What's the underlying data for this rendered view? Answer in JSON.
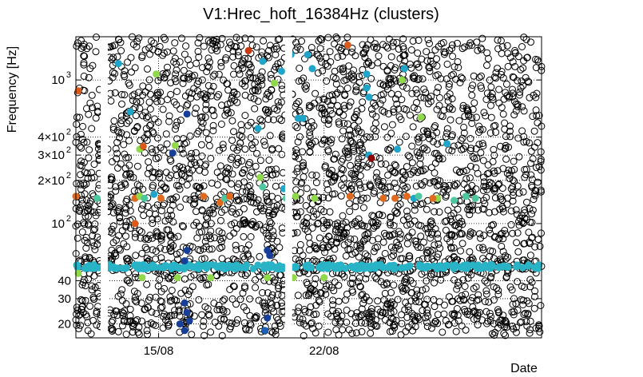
{
  "chart_data": {
    "type": "scatter",
    "title": "V1:Hrec_hoft_16384Hz (clusters)",
    "xlabel": "Date",
    "ylabel": "Frequency [Hz]",
    "yscale": "log",
    "ylim": [
      16,
      2000
    ],
    "x_ticks": [
      "15/08",
      "22/08"
    ],
    "x_range_days": [
      11.5,
      31.2
    ],
    "x_tick_days": [
      15,
      22
    ],
    "y_ticks": [
      {
        "value": 20,
        "label": "20"
      },
      {
        "value": 30,
        "label": "30"
      },
      {
        "value": 40,
        "label": "40"
      },
      {
        "value": 100,
        "label": "10",
        "exp": "2"
      },
      {
        "value": 200,
        "label": "2×10",
        "exp": "2"
      },
      {
        "value": 300,
        "label": "3×10",
        "exp": "2"
      },
      {
        "value": 400,
        "label": "4×10",
        "exp": "2"
      },
      {
        "value": 1000,
        "label": "10",
        "exp": "3"
      }
    ],
    "grid": "dotted",
    "data_gaps_days": [
      [
        12.55,
        12.85
      ],
      [
        20.35,
        20.65
      ]
    ],
    "background_clusters": {
      "description_color": "black open circles",
      "frequency_bands": [
        19,
        22,
        26,
        33,
        44,
        50,
        60,
        75,
        90,
        110,
        135,
        165,
        200,
        250,
        320,
        420,
        560,
        700,
        900,
        1150,
        1500,
        1900
      ],
      "color": "#000000"
    },
    "main_line_hz": 50,
    "main_line_color": "#29b3c6",
    "colored_points": [
      {
        "day": 11.6,
        "hz": 840,
        "color": "#d95a1a"
      },
      {
        "day": 11.5,
        "hz": 155,
        "color": "#e06a1e"
      },
      {
        "day": 12.4,
        "hz": 150,
        "color": "#4cc7a0"
      },
      {
        "day": 13.3,
        "hz": 1300,
        "color": "#1fa5c9"
      },
      {
        "day": 13.8,
        "hz": 600,
        "color": "#1fa5c9"
      },
      {
        "day": 14.2,
        "hz": 330,
        "color": "#8fd94a"
      },
      {
        "day": 14.35,
        "hz": 345,
        "color": "#d95a1a"
      },
      {
        "day": 14.0,
        "hz": 150,
        "color": "#e06a1e"
      },
      {
        "day": 14.2,
        "hz": 155,
        "color": "#8fd94a"
      },
      {
        "day": 14.4,
        "hz": 150,
        "color": "#4cc7a0"
      },
      {
        "day": 14.8,
        "hz": 160,
        "color": "#1fa5c9"
      },
      {
        "day": 14.9,
        "hz": 1100,
        "color": "#8fd94a"
      },
      {
        "day": 15.7,
        "hz": 350,
        "color": "#8fd94a"
      },
      {
        "day": 15.6,
        "hz": 310,
        "color": "#173f99"
      },
      {
        "day": 16.2,
        "hz": 580,
        "color": "#173f99"
      },
      {
        "day": 14.0,
        "hz": 100,
        "color": "#d95a1a"
      },
      {
        "day": 15.1,
        "hz": 150,
        "color": "#e06a1e"
      },
      {
        "day": 16.9,
        "hz": 155,
        "color": "#e06a1e"
      },
      {
        "day": 17.6,
        "hz": 140,
        "color": "#e06a1e"
      },
      {
        "day": 17.8,
        "hz": 150,
        "color": "#4cc7a0"
      },
      {
        "day": 18.0,
        "hz": 155,
        "color": "#e06a1e"
      },
      {
        "day": 18.8,
        "hz": 1600,
        "color": "#cc3a12"
      },
      {
        "day": 19.4,
        "hz": 1350,
        "color": "#1fa5c9"
      },
      {
        "day": 19.2,
        "hz": 460,
        "color": "#1fa5c9"
      },
      {
        "day": 19.3,
        "hz": 210,
        "color": "#8fd94a"
      },
      {
        "day": 19.4,
        "hz": 180,
        "color": "#4cc7a0"
      },
      {
        "day": 19.9,
        "hz": 950,
        "color": "#8fd94a"
      },
      {
        "day": 20.2,
        "hz": 1150,
        "color": "#1fa5c9"
      },
      {
        "day": 20.6,
        "hz": 1500,
        "color": "#1fa5c9"
      },
      {
        "day": 20.5,
        "hz": 295,
        "color": "#d95a1a"
      },
      {
        "day": 20.9,
        "hz": 540,
        "color": "#1fa5c9"
      },
      {
        "day": 21.1,
        "hz": 540,
        "color": "#1fa5c9"
      },
      {
        "day": 20.3,
        "hz": 175,
        "color": "#1fa5c9"
      },
      {
        "day": 20.4,
        "hz": 150,
        "color": "#4cc7a0"
      },
      {
        "day": 20.8,
        "hz": 155,
        "color": "#8fd94a"
      },
      {
        "day": 21.3,
        "hz": 1500,
        "color": "#1fa5c9"
      },
      {
        "day": 21.6,
        "hz": 150,
        "color": "#8fd94a"
      },
      {
        "day": 23.0,
        "hz": 1750,
        "color": "#d95a1a"
      },
      {
        "day": 23.8,
        "hz": 1100,
        "color": "#1fa5c9"
      },
      {
        "day": 23.8,
        "hz": 880,
        "color": "#1fa5c9"
      },
      {
        "day": 23.9,
        "hz": 760,
        "color": "#1fa5c9"
      },
      {
        "day": 23.9,
        "hz": 300,
        "color": "#1fa5c9"
      },
      {
        "day": 24.0,
        "hz": 285,
        "color": "#8b0000"
      },
      {
        "day": 23.1,
        "hz": 155,
        "color": "#e06a1e"
      },
      {
        "day": 24.5,
        "hz": 150,
        "color": "#e06a1e"
      },
      {
        "day": 25.0,
        "hz": 150,
        "color": "#e06a1e"
      },
      {
        "day": 25.4,
        "hz": 1200,
        "color": "#1fa5c9"
      },
      {
        "day": 25.3,
        "hz": 1000,
        "color": "#8fd94a"
      },
      {
        "day": 25.1,
        "hz": 330,
        "color": "#1fa5c9"
      },
      {
        "day": 25.5,
        "hz": 155,
        "color": "#e06a1e"
      },
      {
        "day": 25.8,
        "hz": 150,
        "color": "#1fa5c9"
      },
      {
        "day": 26.0,
        "hz": 155,
        "color": "#4cc7a0"
      },
      {
        "day": 26.1,
        "hz": 550,
        "color": "#8fd94a"
      },
      {
        "day": 26.8,
        "hz": 150,
        "color": "#8fd94a"
      },
      {
        "day": 27.2,
        "hz": 360,
        "color": "#1fa5c9"
      },
      {
        "day": 27.5,
        "hz": 145,
        "color": "#4cc7a0"
      },
      {
        "day": 26.6,
        "hz": 150,
        "color": "#e06a1e"
      },
      {
        "day": 28.0,
        "hz": 155,
        "color": "#4cc7a0"
      },
      {
        "day": 28.4,
        "hz": 150,
        "color": "#4cc7a0"
      },
      {
        "day": 21.5,
        "hz": 1200,
        "color": "#1fa5c9"
      },
      {
        "day": 11.6,
        "hz": 45,
        "color": "#8fd94a"
      },
      {
        "day": 15.8,
        "hz": 42,
        "color": "#8fd94a"
      },
      {
        "day": 17.2,
        "hz": 42,
        "color": "#8fd94a"
      },
      {
        "day": 20.7,
        "hz": 42,
        "color": "#8fd94a"
      },
      {
        "day": 22.0,
        "hz": 42,
        "color": "#8fd94a"
      },
      {
        "day": 19.6,
        "hz": 42,
        "color": "#8fd94a"
      },
      {
        "day": 14.3,
        "hz": 42,
        "color": "#8fd94a"
      },
      {
        "day": 16.1,
        "hz": 28,
        "color": "#173f99"
      },
      {
        "day": 16.2,
        "hz": 24,
        "color": "#173f99"
      },
      {
        "day": 16.3,
        "hz": 21,
        "color": "#173f99"
      },
      {
        "day": 16.1,
        "hz": 18,
        "color": "#173f99"
      },
      {
        "day": 15.9,
        "hz": 20,
        "color": "#173f99"
      },
      {
        "day": 19.5,
        "hz": 18,
        "color": "#1b5fb8"
      },
      {
        "day": 19.6,
        "hz": 22,
        "color": "#173f99"
      },
      {
        "day": 19.7,
        "hz": 60,
        "color": "#173f99"
      },
      {
        "day": 19.6,
        "hz": 65,
        "color": "#173f99"
      },
      {
        "day": 16.2,
        "hz": 65,
        "color": "#173f99"
      },
      {
        "day": 16.1,
        "hz": 55,
        "color": "#173f99"
      }
    ]
  }
}
